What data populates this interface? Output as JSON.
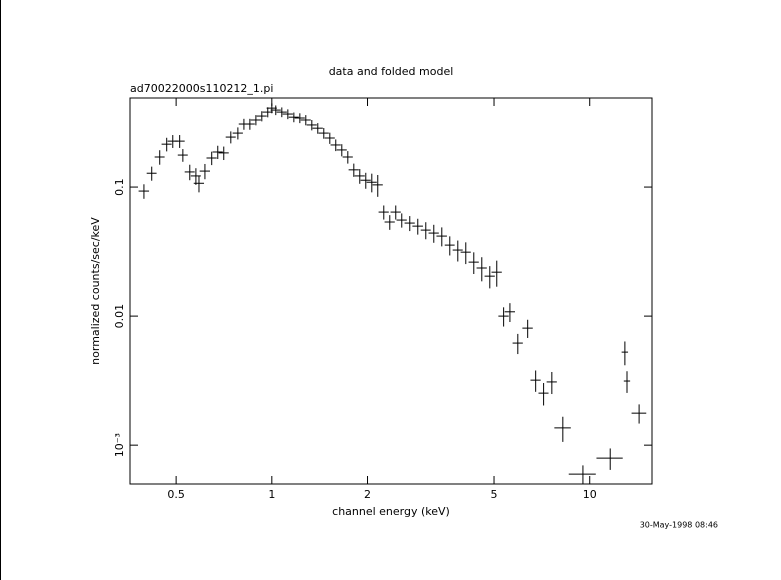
{
  "chart_data": {
    "type": "errorbar",
    "title": "data and folded model",
    "subtitle": "ad70022000s110212_1.pi",
    "xlabel": "channel energy (keV)",
    "ylabel": "normalized counts/sec/keV",
    "timestamp": "30-May-1998 08:46",
    "xscale": "log",
    "yscale": "log",
    "color": "#000000",
    "xlim": [
      0.358,
      15.7
    ],
    "ylim": [
      0.0005,
      0.49
    ],
    "xticks": [
      0.5,
      1,
      2,
      5,
      10
    ],
    "yticks": [
      0.1,
      0.01,
      {
        "value": 0.001,
        "label": "10⁻³"
      }
    ],
    "x": [
      0.396,
      0.419,
      0.444,
      0.467,
      0.488,
      0.513,
      0.525,
      0.552,
      0.577,
      0.59,
      0.616,
      0.647,
      0.676,
      0.706,
      0.743,
      0.782,
      0.817,
      0.853,
      0.891,
      0.93,
      0.971,
      1.0,
      1.029,
      1.075,
      1.123,
      1.173,
      1.225,
      1.279,
      1.336,
      1.395,
      1.457,
      1.522,
      1.589,
      1.66,
      1.734,
      1.811,
      1.891,
      1.975,
      2.063,
      2.154,
      2.25,
      2.35,
      2.454,
      2.563,
      2.716,
      2.878,
      3.05,
      3.232,
      3.425,
      3.629,
      3.846,
      4.075,
      4.318,
      4.576,
      4.849,
      5.1,
      5.36,
      5.61,
      5.94,
      6.38,
      6.76,
      7.16,
      7.6,
      8.23,
      9.52,
      11.6,
      12.9,
      13.1,
      14.3
    ],
    "xerr": [
      0.015,
      0.015,
      0.016,
      0.017,
      0.018,
      0.019,
      0.019,
      0.02,
      0.021,
      0.022,
      0.023,
      0.024,
      0.025,
      0.026,
      0.027,
      0.029,
      0.03,
      0.031,
      0.033,
      0.034,
      0.036,
      0.037,
      0.038,
      0.04,
      0.042,
      0.043,
      0.045,
      0.047,
      0.049,
      0.052,
      0.054,
      0.056,
      0.059,
      0.061,
      0.064,
      0.067,
      0.07,
      0.073,
      0.076,
      0.08,
      0.083,
      0.087,
      0.091,
      0.095,
      0.1,
      0.11,
      0.11,
      0.12,
      0.13,
      0.13,
      0.14,
      0.15,
      0.16,
      0.17,
      0.18,
      0.19,
      0.2,
      0.21,
      0.22,
      0.24,
      0.25,
      0.26,
      0.28,
      0.49,
      0.93,
      1.1,
      0.3,
      0.3,
      0.76
    ],
    "values": [
      0.0931,
      0.128,
      0.171,
      0.215,
      0.227,
      0.227,
      0.177,
      0.131,
      0.122,
      0.107,
      0.133,
      0.168,
      0.187,
      0.184,
      0.244,
      0.262,
      0.308,
      0.308,
      0.331,
      0.355,
      0.381,
      0.409,
      0.395,
      0.381,
      0.368,
      0.348,
      0.343,
      0.331,
      0.303,
      0.286,
      0.262,
      0.24,
      0.212,
      0.194,
      0.171,
      0.136,
      0.122,
      0.113,
      0.109,
      0.104,
      0.064,
      0.0536,
      0.064,
      0.0555,
      0.0526,
      0.0498,
      0.0464,
      0.044,
      0.0417,
      0.0355,
      0.0325,
      0.0313,
      0.0262,
      0.0236,
      0.0204,
      0.0219,
      0.01,
      0.0108,
      0.00618,
      0.00807,
      0.00319,
      0.00253,
      0.00309,
      0.00136,
      0.000597,
      0.000793,
      0.00526,
      0.00314,
      0.00177
    ],
    "yerr": [
      0.012,
      0.016,
      0.022,
      0.026,
      0.026,
      0.026,
      0.02,
      0.018,
      0.018,
      0.016,
      0.018,
      0.02,
      0.022,
      0.022,
      0.026,
      0.028,
      0.03,
      0.03,
      0.03,
      0.032,
      0.034,
      0.036,
      0.034,
      0.033,
      0.032,
      0.03,
      0.03,
      0.03,
      0.028,
      0.027,
      0.025,
      0.024,
      0.022,
      0.021,
      0.019,
      0.016,
      0.016,
      0.016,
      0.018,
      0.02,
      0.008,
      0.007,
      0.008,
      0.007,
      0.007,
      0.007,
      0.007,
      0.007,
      0.007,
      0.006,
      0.006,
      0.006,
      0.005,
      0.005,
      0.004,
      0.005,
      0.0017,
      0.0018,
      0.0011,
      0.0013,
      0.0006,
      0.0005,
      0.0006,
      0.0003,
      0.0001,
      0.00015,
      0.0011,
      0.0006,
      0.0003
    ]
  }
}
